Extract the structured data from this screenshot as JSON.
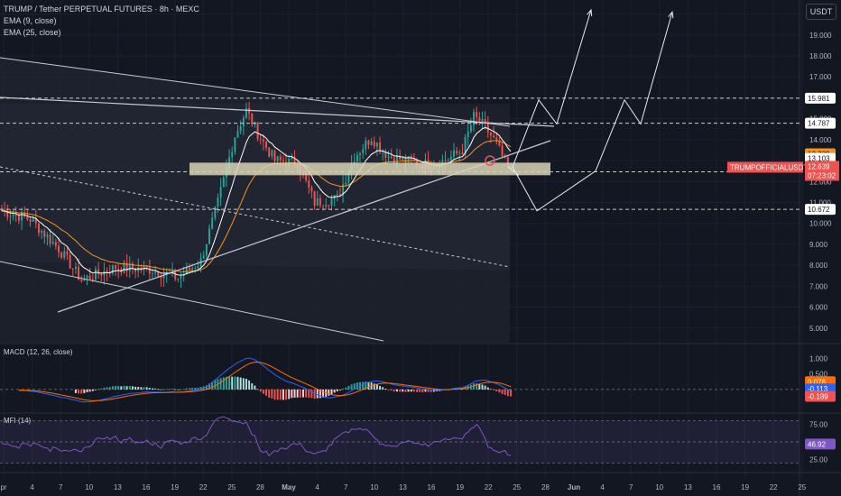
{
  "header": {
    "title": "TRUMP / Tether PERPETUAL FUTURES · 8h · MEXC",
    "ema9": "EMA (9, close)",
    "ema25": "EMA (25, close)",
    "currency_button": "USDT"
  },
  "panes": {
    "macd_label": "MACD (12, 26, close)",
    "mfi_label": "MFI (14)"
  },
  "colors": {
    "background": "#131722",
    "up": "#26a69a",
    "down": "#ef5350",
    "ema9": "#ffffff",
    "ema25": "#f7931a",
    "macd": "#2962ff",
    "signal": "#ff6d00",
    "mfi": "#7e57c2",
    "support_zone": "#d8d4b4"
  },
  "chart_data": {
    "type": "candlestick",
    "symbol": "TRUMPOFFICIALUSDT.P",
    "timeframe": "8h",
    "price_axis": {
      "ticks": [
        "20.000",
        "19.000",
        "18.000",
        "17.000",
        "16.000",
        "15.000",
        "14.000",
        "13.000",
        "12.000",
        "11.000",
        "10.000",
        "9.000",
        "8.000",
        "7.000",
        "6.000",
        "5.000"
      ],
      "range": [
        4.3,
        20.5
      ]
    },
    "x_axis_labels": [
      "pr",
      "4",
      "7",
      "10",
      "13",
      "16",
      "19",
      "22",
      "25",
      "28",
      "May",
      "4",
      "7",
      "10",
      "13",
      "16",
      "19",
      "22",
      "25",
      "28",
      "Jun",
      "4",
      "7",
      "10",
      "13",
      "16",
      "19",
      "22",
      "25"
    ],
    "levels": [
      {
        "label": "15.981",
        "value": 15.981
      },
      {
        "label": "14.787",
        "value": 14.787
      },
      {
        "label": "12.462",
        "value": 12.462
      },
      {
        "label": "10.672",
        "value": 10.672
      }
    ],
    "support_zone": [
      12.3,
      12.9
    ],
    "current": {
      "symbol_label": "TRUMPOFFICIALUSDT.P",
      "price": "12.639",
      "countdown": "07:23:02"
    },
    "ema_labels": {
      "ema25": "13.329",
      "ema9": "13.103"
    },
    "ohlc_keypoints": [
      [
        0,
        10.6
      ],
      [
        10,
        10.2
      ],
      [
        20,
        8.8
      ],
      [
        28,
        7.3
      ],
      [
        40,
        7.9
      ],
      [
        52,
        7.8
      ],
      [
        62,
        7.4
      ],
      [
        70,
        8.2
      ],
      [
        76,
        11.0
      ],
      [
        82,
        14.2
      ],
      [
        86,
        15.4
      ],
      [
        90,
        14.3
      ],
      [
        96,
        13.0
      ],
      [
        104,
        12.9
      ],
      [
        110,
        11.0
      ],
      [
        118,
        11.2
      ],
      [
        124,
        13.2
      ],
      [
        130,
        14.1
      ],
      [
        136,
        13.2
      ],
      [
        142,
        13.0
      ],
      [
        150,
        12.8
      ],
      [
        156,
        13.0
      ],
      [
        162,
        13.5
      ],
      [
        166,
        15.1
      ],
      [
        170,
        14.6
      ],
      [
        174,
        13.8
      ],
      [
        178,
        12.6
      ]
    ],
    "projections": [
      [
        [
          12.5,
          16.0,
          14.8,
          20.0
        ],
        [
          12.5,
          10.6,
          16.0,
          14.8,
          20.0
        ]
      ]
    ],
    "macd": {
      "label": "MACD (12, 26, close)",
      "ticks": [
        "1.000",
        "0.500"
      ],
      "range": [
        -0.7,
        1.45
      ],
      "values": {
        "histogram": "0.076",
        "macd": "-0.113",
        "signal": "-0.189"
      }
    },
    "mfi": {
      "label": "MFI (14)",
      "ticks": [
        "75.00",
        "25.00"
      ],
      "range": [
        12,
        88
      ],
      "value": "46.92"
    }
  }
}
